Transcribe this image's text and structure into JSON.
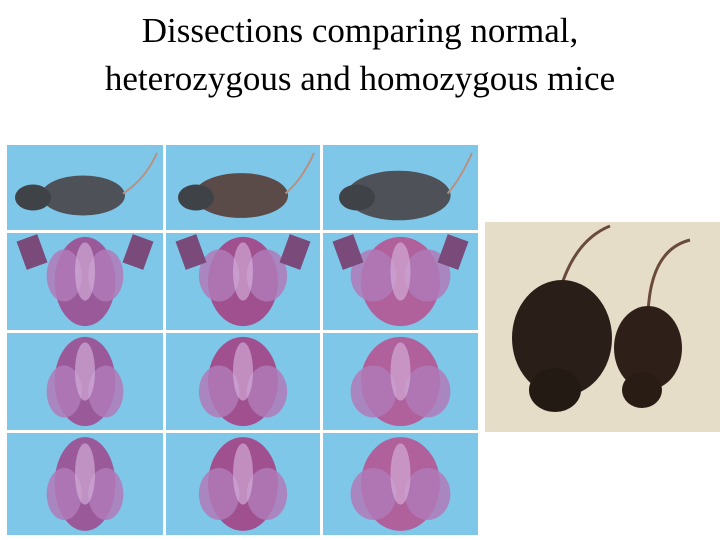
{
  "title": {
    "lines": [
      "Dissections comparing normal,",
      "heterozygous and homozygous mice"
    ]
  }
}
